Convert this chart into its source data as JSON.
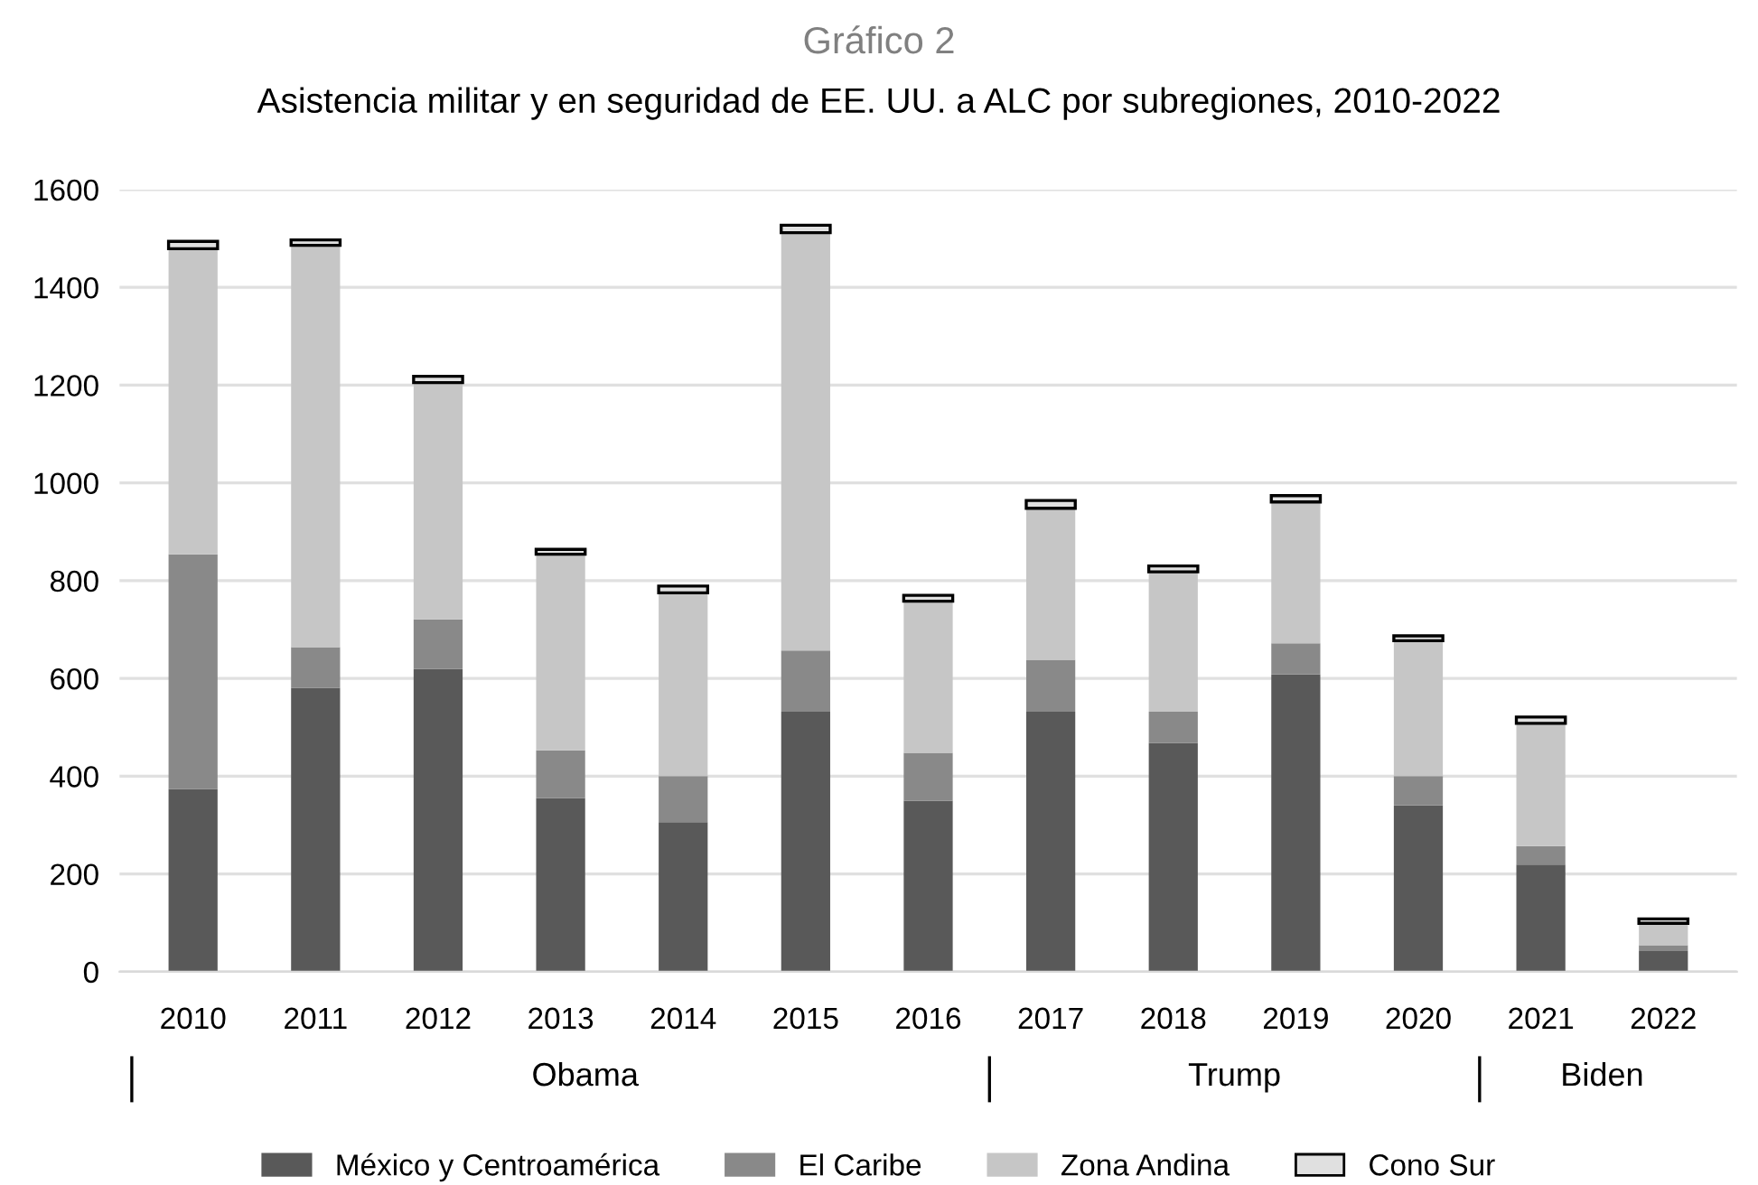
{
  "chart_data": {
    "type": "bar",
    "title": "Gráfico 2",
    "subtitle": "Asistencia militar y en seguridad de EE. UU. a ALC por subregiones, 2010-2022",
    "categories": [
      "2010",
      "2011",
      "2012",
      "2013",
      "2014",
      "2015",
      "2016",
      "2017",
      "2018",
      "2019",
      "2020",
      "2021",
      "2022"
    ],
    "stacked": true,
    "series": [
      {
        "name": "México y Centroamérica",
        "color": "#595959",
        "values": [
          374,
          581,
          619,
          355,
          306,
          532,
          350,
          532,
          468,
          608,
          340,
          219,
          42
        ]
      },
      {
        "name": "El Caribe",
        "color": "#898989",
        "values": [
          480,
          83,
          102,
          98,
          94,
          125,
          98,
          106,
          64,
          64,
          60,
          38,
          12
        ]
      },
      {
        "name": "Zona Andina",
        "color": "#c6c6c6",
        "values": [
          625,
          822,
          484,
          401,
          375,
          855,
          310,
          310,
          286,
          289,
          277,
          251,
          45
        ]
      },
      {
        "name": "Cono Sur",
        "color": "#e0e0e0",
        "values": [
          15,
          11,
          13,
          10,
          14,
          15,
          12,
          16,
          12,
          13,
          10,
          13,
          9
        ]
      }
    ],
    "ylim": [
      0,
      1600
    ],
    "yticks": [
      0,
      200,
      400,
      600,
      800,
      1000,
      1200,
      1400,
      1600
    ],
    "grid": "y",
    "legend": "bottom",
    "annotations": [
      "Obama",
      "Trump",
      "Biden"
    ]
  }
}
